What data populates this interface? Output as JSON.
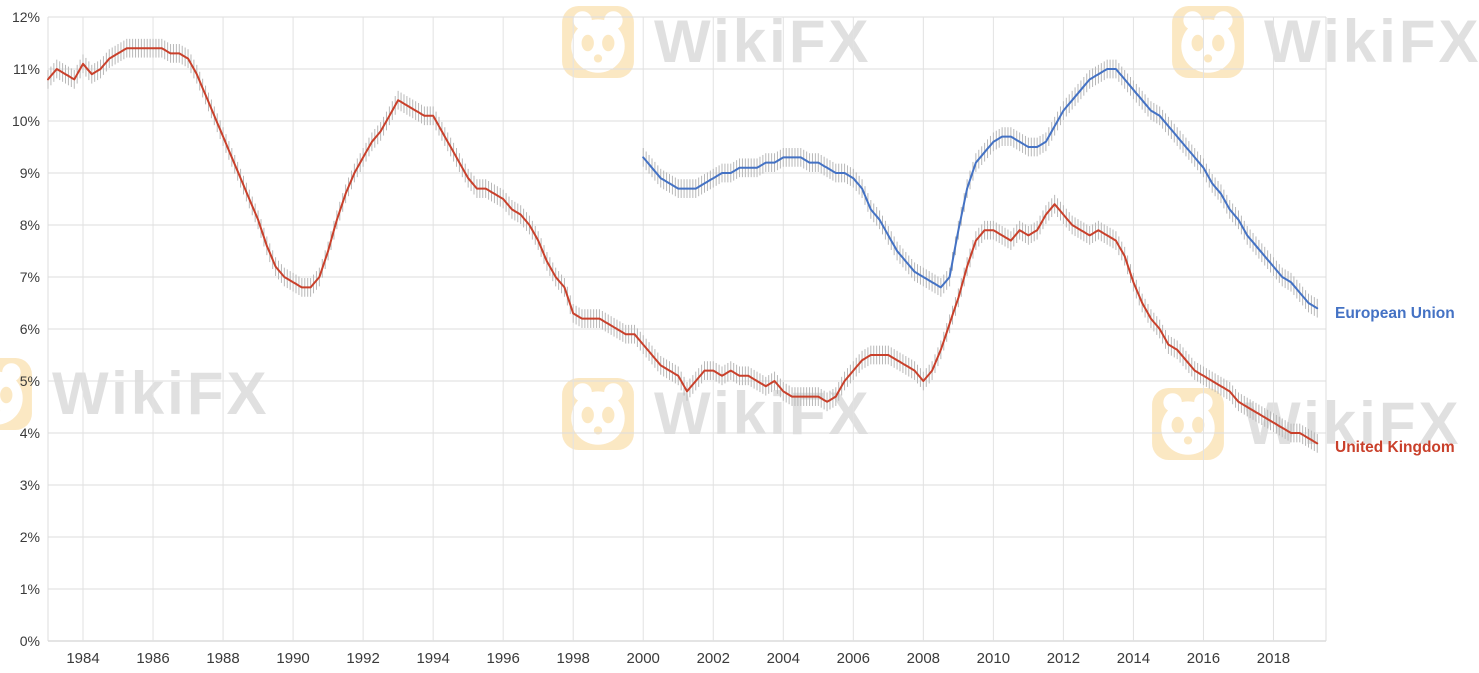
{
  "watermark": {
    "text": "WikiFX"
  },
  "chart_data": {
    "type": "line",
    "xlabel": "",
    "ylabel": "",
    "grid": true,
    "legend_position": "right",
    "xlim": [
      1983,
      2019.5
    ],
    "ylim": [
      0,
      12
    ],
    "y_tick_values": [
      0,
      1,
      2,
      3,
      4,
      5,
      6,
      7,
      8,
      9,
      10,
      11,
      12
    ],
    "y_tick_labels": [
      "0%",
      "1%",
      "2%",
      "3%",
      "4%",
      "5%",
      "6%",
      "7%",
      "8%",
      "9%",
      "10%",
      "11%",
      "12%"
    ],
    "x_tick_values": [
      1984,
      1986,
      1988,
      1990,
      1992,
      1994,
      1996,
      1998,
      2000,
      2002,
      2004,
      2006,
      2008,
      2010,
      2012,
      2014,
      2016,
      2018
    ],
    "x_tick_labels": [
      "1984",
      "1986",
      "1988",
      "1990",
      "1992",
      "1994",
      "1996",
      "1998",
      "2000",
      "2002",
      "2004",
      "2006",
      "2008",
      "2010",
      "2012",
      "2014",
      "2016",
      "2018"
    ],
    "error_bar_halfwidth": 0.18,
    "series": [
      {
        "name": "European Union",
        "color": "#4472c4",
        "x_start": 2000.0,
        "x_step": 0.25,
        "values": [
          9.3,
          9.1,
          8.9,
          8.8,
          8.7,
          8.7,
          8.7,
          8.8,
          8.9,
          9.0,
          9.0,
          9.1,
          9.1,
          9.1,
          9.2,
          9.2,
          9.3,
          9.3,
          9.3,
          9.2,
          9.2,
          9.1,
          9.0,
          9.0,
          8.9,
          8.7,
          8.3,
          8.1,
          7.8,
          7.5,
          7.3,
          7.1,
          7.0,
          6.9,
          6.8,
          7.0,
          7.9,
          8.7,
          9.2,
          9.4,
          9.6,
          9.7,
          9.7,
          9.6,
          9.5,
          9.5,
          9.6,
          9.9,
          10.2,
          10.4,
          10.6,
          10.8,
          10.9,
          11.0,
          11.0,
          10.8,
          10.6,
          10.4,
          10.2,
          10.1,
          9.9,
          9.7,
          9.5,
          9.3,
          9.1,
          8.8,
          8.6,
          8.3,
          8.1,
          7.8,
          7.6,
          7.4,
          7.2,
          7.0,
          6.9,
          6.7,
          6.5,
          6.4
        ]
      },
      {
        "name": "United Kingdom",
        "color": "#c9402b",
        "x_start": 1983.0,
        "x_step": 0.25,
        "values": [
          10.8,
          11.0,
          10.9,
          10.8,
          11.1,
          10.9,
          11.0,
          11.2,
          11.3,
          11.4,
          11.4,
          11.4,
          11.4,
          11.4,
          11.3,
          11.3,
          11.2,
          10.9,
          10.5,
          10.1,
          9.7,
          9.3,
          8.9,
          8.5,
          8.1,
          7.6,
          7.2,
          7.0,
          6.9,
          6.8,
          6.8,
          7.0,
          7.5,
          8.1,
          8.6,
          9.0,
          9.3,
          9.6,
          9.8,
          10.1,
          10.4,
          10.3,
          10.2,
          10.1,
          10.1,
          9.8,
          9.5,
          9.2,
          8.9,
          8.7,
          8.7,
          8.6,
          8.5,
          8.3,
          8.2,
          8.0,
          7.7,
          7.3,
          7.0,
          6.8,
          6.3,
          6.2,
          6.2,
          6.2,
          6.1,
          6.0,
          5.9,
          5.9,
          5.7,
          5.5,
          5.3,
          5.2,
          5.1,
          4.8,
          5.0,
          5.2,
          5.2,
          5.1,
          5.2,
          5.1,
          5.1,
          5.0,
          4.9,
          5.0,
          4.8,
          4.7,
          4.7,
          4.7,
          4.7,
          4.6,
          4.7,
          5.0,
          5.2,
          5.4,
          5.5,
          5.5,
          5.5,
          5.4,
          5.3,
          5.2,
          5.0,
          5.2,
          5.6,
          6.1,
          6.6,
          7.2,
          7.7,
          7.9,
          7.9,
          7.8,
          7.7,
          7.9,
          7.8,
          7.9,
          8.2,
          8.4,
          8.2,
          8.0,
          7.9,
          7.8,
          7.9,
          7.8,
          7.7,
          7.4,
          6.9,
          6.5,
          6.2,
          6.0,
          5.7,
          5.6,
          5.4,
          5.2,
          5.1,
          5.0,
          4.9,
          4.8,
          4.6,
          4.5,
          4.4,
          4.3,
          4.2,
          4.1,
          4.0,
          4.0,
          3.9,
          3.8
        ]
      }
    ]
  }
}
